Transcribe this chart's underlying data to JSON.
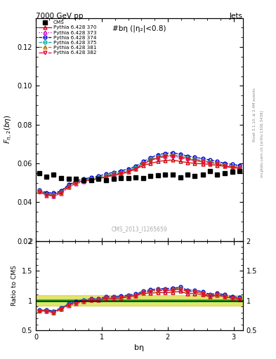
{
  "title_left": "7000 GeV pp",
  "title_right": "Jets",
  "plot_title": "#bη (|η₂|<0.8)",
  "watermark": "CMS_2013_I1265659",
  "right_label_top": "Rivet 3.1.10, ≥ 2.4M events",
  "right_label_bot": "mcplots.cern.ch [arXiv:1306.3436]",
  "xlabel": "bη",
  "ylabel_main": "$F_{\\eta,2}(b\\eta)$",
  "ylabel_ratio": "Ratio to CMS",
  "ylim_main": [
    0.02,
    0.135
  ],
  "ylim_ratio": [
    0.5,
    2.0
  ],
  "xlim": [
    0.0,
    3.14
  ],
  "cms_x": [
    0.05,
    0.16,
    0.27,
    0.38,
    0.5,
    0.61,
    0.72,
    0.84,
    0.95,
    1.06,
    1.18,
    1.29,
    1.4,
    1.51,
    1.63,
    1.74,
    1.85,
    1.96,
    2.08,
    2.19,
    2.3,
    2.41,
    2.53,
    2.64,
    2.75,
    2.86,
    2.98,
    3.09
  ],
  "cms_y": [
    0.055,
    0.0532,
    0.0544,
    0.0524,
    0.0521,
    0.0521,
    0.0514,
    0.0513,
    0.0521,
    0.0512,
    0.0522,
    0.0524,
    0.0523,
    0.0528,
    0.0526,
    0.0534,
    0.0538,
    0.0543,
    0.0543,
    0.0528,
    0.0543,
    0.0537,
    0.0544,
    0.056,
    0.0543,
    0.0548,
    0.0558,
    0.0562
  ],
  "series": [
    {
      "label": "Pythia 6.428 370",
      "color": "#cc0000",
      "linestyle": "-",
      "marker": "^",
      "mfc": "none",
      "y": [
        0.0458,
        0.0445,
        0.044,
        0.0455,
        0.049,
        0.0505,
        0.051,
        0.0515,
        0.0522,
        0.053,
        0.0538,
        0.0545,
        0.0556,
        0.057,
        0.059,
        0.06,
        0.061,
        0.0615,
        0.0618,
        0.061,
        0.0605,
        0.06,
        0.0598,
        0.0595,
        0.059,
        0.0585,
        0.0578,
        0.0575
      ]
    },
    {
      "label": "Pythia 6.428 373",
      "color": "#cc00cc",
      "linestyle": ":",
      "marker": "^",
      "mfc": "none",
      "y": [
        0.0455,
        0.0435,
        0.043,
        0.0445,
        0.0478,
        0.0495,
        0.0505,
        0.0515,
        0.0522,
        0.0532,
        0.0542,
        0.055,
        0.056,
        0.0575,
        0.06,
        0.0618,
        0.063,
        0.0638,
        0.064,
        0.0632,
        0.0625,
        0.0618,
        0.0612,
        0.0608,
        0.0602,
        0.0595,
        0.059,
        0.0585
      ]
    },
    {
      "label": "Pythia 6.428 374",
      "color": "#0000cc",
      "linestyle": "--",
      "marker": "o",
      "mfc": "none",
      "y": [
        0.0462,
        0.045,
        0.0448,
        0.0458,
        0.0492,
        0.051,
        0.052,
        0.0528,
        0.0535,
        0.0545,
        0.0555,
        0.0562,
        0.0572,
        0.0585,
        0.061,
        0.063,
        0.0645,
        0.0652,
        0.0655,
        0.0648,
        0.0638,
        0.0632,
        0.0625,
        0.0618,
        0.061,
        0.0602,
        0.0595,
        0.059
      ]
    },
    {
      "label": "Pythia 6.428 375",
      "color": "#00aaaa",
      "linestyle": "--",
      "marker": "o",
      "mfc": "none",
      "y": [
        0.046,
        0.0442,
        0.0438,
        0.0452,
        0.0485,
        0.0502,
        0.0515,
        0.0522,
        0.0528,
        0.0538,
        0.0548,
        0.0555,
        0.0565,
        0.0578,
        0.0605,
        0.0622,
        0.0635,
        0.0642,
        0.0645,
        0.0638,
        0.0628,
        0.0622,
        0.0615,
        0.0608,
        0.06,
        0.0592,
        0.0585,
        0.058
      ]
    },
    {
      "label": "Pythia 6.428 381",
      "color": "#aa7700",
      "linestyle": "--",
      "marker": "^",
      "mfc": "none",
      "y": [
        0.0455,
        0.044,
        0.0435,
        0.045,
        0.0482,
        0.05,
        0.051,
        0.0518,
        0.0525,
        0.0535,
        0.0545,
        0.0552,
        0.0562,
        0.0575,
        0.06,
        0.0618,
        0.0632,
        0.064,
        0.0645,
        0.0638,
        0.0628,
        0.062,
        0.0614,
        0.0607,
        0.06,
        0.0592,
        0.0584,
        0.058
      ]
    },
    {
      "label": "Pythia 6.428 382",
      "color": "#ee0033",
      "linestyle": "-.",
      "marker": "v",
      "mfc": "none",
      "y": [
        0.0452,
        0.0438,
        0.0432,
        0.0448,
        0.048,
        0.0498,
        0.0508,
        0.0515,
        0.0522,
        0.0532,
        0.0542,
        0.055,
        0.056,
        0.0572,
        0.0598,
        0.0615,
        0.0628,
        0.0635,
        0.0638,
        0.063,
        0.0622,
        0.0615,
        0.0608,
        0.0602,
        0.0595,
        0.0587,
        0.058,
        0.0575
      ]
    }
  ],
  "band_inner_color": "#00bb00",
  "band_outer_color": "#cccc00",
  "band_inner_half": 0.02,
  "band_outer_half": 0.09
}
